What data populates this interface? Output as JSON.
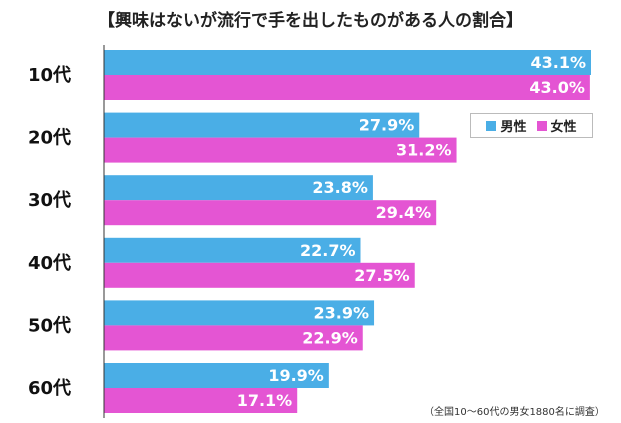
{
  "chart_data": {
    "type": "bar",
    "orientation": "horizontal",
    "title": "【興味はないが流行で手を出したものがある人の割合】",
    "categories": [
      "10代",
      "20代",
      "30代",
      "40代",
      "50代",
      "60代"
    ],
    "series": [
      {
        "name": "男性",
        "values": [
          43.1,
          27.9,
          23.8,
          22.7,
          23.9,
          19.9
        ],
        "labels": [
          "43.1%",
          "27.9%",
          "23.8%",
          "22.7%",
          "23.9%",
          "19.9%"
        ],
        "color": "#4aaee6"
      },
      {
        "name": "女性",
        "values": [
          43.0,
          31.2,
          29.4,
          27.5,
          22.9,
          17.1
        ],
        "labels": [
          "43.0%",
          "31.2%",
          "29.4%",
          "27.5%",
          "22.9%",
          "17.1%"
        ],
        "color": "#e455d3"
      }
    ],
    "xlim": [
      0,
      43.1
    ],
    "grid": false,
    "legend_position": "top-right",
    "note": "（全国10〜60代の男女1880名に調査）"
  },
  "colors": {
    "male": "#4aaee6",
    "female": "#e455d3",
    "axis": "#333333"
  }
}
